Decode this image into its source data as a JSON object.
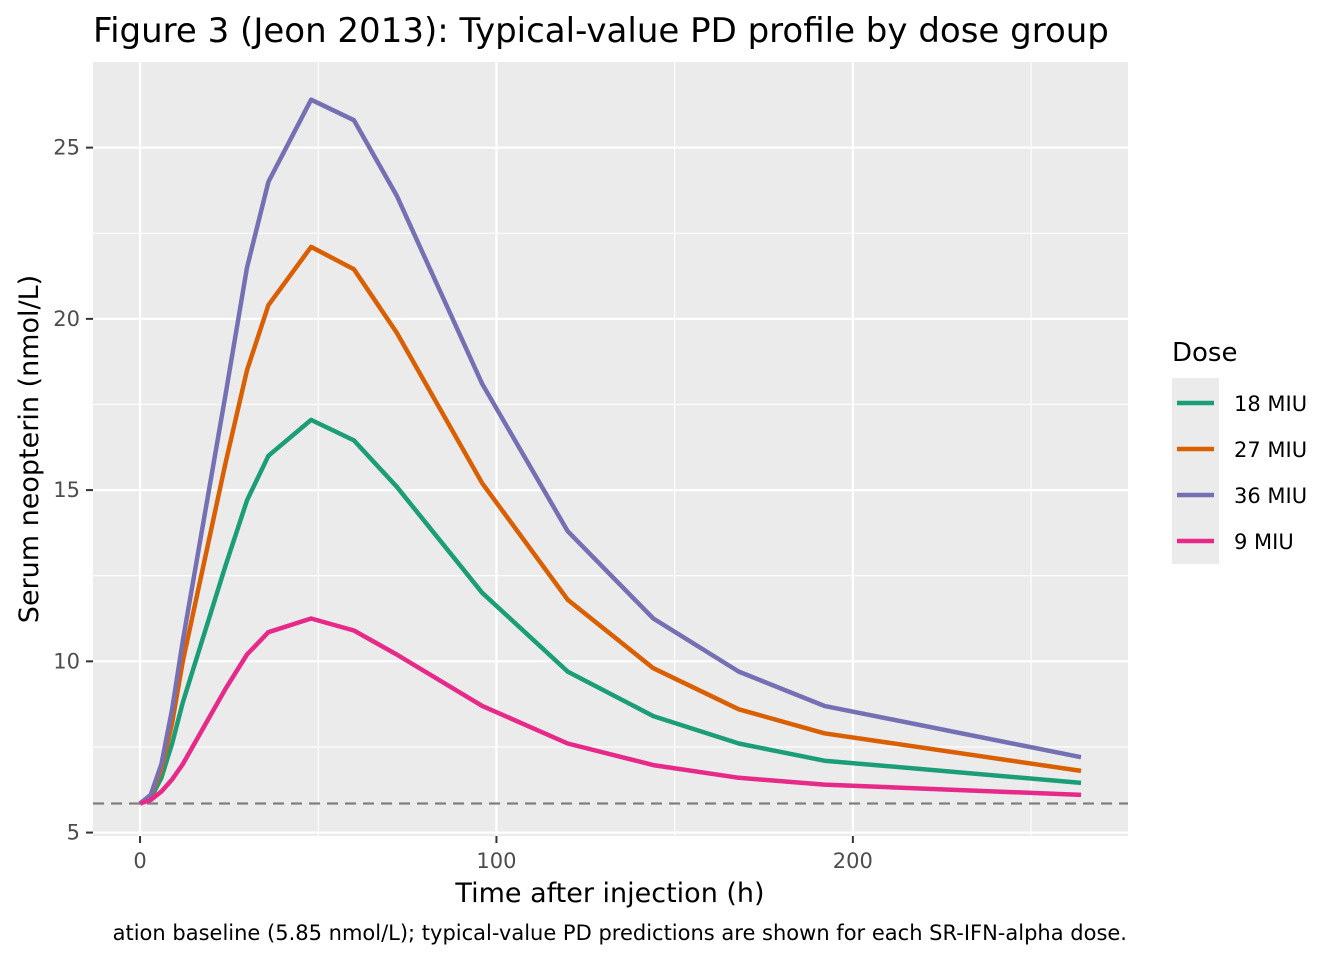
{
  "chart_data": {
    "type": "line",
    "title": "Figure 3 (Jeon 2013): Typical-value PD profile by dose group",
    "xlabel": "Time after injection (h)",
    "ylabel": "Serum neopterin (nmol/L)",
    "caption": "ation baseline (5.85 nmol/L); typical-value PD predictions are shown for each SR-IFN-alpha dose.",
    "xlim": [
      -13.2,
      277.2
    ],
    "ylim": [
      4.9,
      27.5
    ],
    "x_ticks": [
      0,
      100,
      200
    ],
    "y_ticks": [
      5,
      10,
      15,
      20,
      25
    ],
    "grid": true,
    "baseline": {
      "value": 5.85,
      "style": "dashed",
      "color": "#7f7f7f"
    },
    "legend": {
      "title": "Dose",
      "position": "right"
    },
    "series": [
      {
        "name": "18 MIU",
        "color": "#1b9e77",
        "points": [
          [
            0,
            5.85
          ],
          [
            3,
            6.0
          ],
          [
            6,
            6.6
          ],
          [
            9,
            7.6
          ],
          [
            12,
            8.8
          ],
          [
            18,
            10.8
          ],
          [
            24,
            12.8
          ],
          [
            30,
            14.7
          ],
          [
            36,
            16.0
          ],
          [
            48,
            17.05
          ],
          [
            60,
            16.45
          ],
          [
            72,
            15.1
          ],
          [
            96,
            12.0
          ],
          [
            120,
            9.7
          ],
          [
            144,
            8.4
          ],
          [
            168,
            7.6
          ],
          [
            192,
            7.1
          ],
          [
            264,
            6.45
          ]
        ]
      },
      {
        "name": "27 MIU",
        "color": "#d95f02",
        "points": [
          [
            0,
            5.85
          ],
          [
            3,
            6.05
          ],
          [
            6,
            6.85
          ],
          [
            9,
            8.2
          ],
          [
            12,
            10.0
          ],
          [
            18,
            12.9
          ],
          [
            24,
            15.8
          ],
          [
            30,
            18.5
          ],
          [
            36,
            20.4
          ],
          [
            48,
            22.1
          ],
          [
            60,
            21.45
          ],
          [
            72,
            19.6
          ],
          [
            96,
            15.2
          ],
          [
            120,
            11.8
          ],
          [
            144,
            9.8
          ],
          [
            168,
            8.6
          ],
          [
            192,
            7.9
          ],
          [
            264,
            6.8
          ]
        ]
      },
      {
        "name": "36 MIU",
        "color": "#7570b3",
        "points": [
          [
            0,
            5.85
          ],
          [
            3,
            6.1
          ],
          [
            6,
            7.0
          ],
          [
            9,
            8.6
          ],
          [
            12,
            10.6
          ],
          [
            18,
            14.2
          ],
          [
            24,
            17.8
          ],
          [
            30,
            21.5
          ],
          [
            36,
            24.0
          ],
          [
            48,
            26.4
          ],
          [
            60,
            25.8
          ],
          [
            72,
            23.6
          ],
          [
            96,
            18.1
          ],
          [
            120,
            13.8
          ],
          [
            144,
            11.25
          ],
          [
            168,
            9.7
          ],
          [
            192,
            8.7
          ],
          [
            264,
            7.2
          ]
        ]
      },
      {
        "name": "9 MIU",
        "color": "#e7298a",
        "points": [
          [
            0,
            5.85
          ],
          [
            3,
            5.95
          ],
          [
            6,
            6.2
          ],
          [
            9,
            6.55
          ],
          [
            12,
            7.0
          ],
          [
            18,
            8.1
          ],
          [
            24,
            9.2
          ],
          [
            30,
            10.2
          ],
          [
            36,
            10.85
          ],
          [
            48,
            11.25
          ],
          [
            60,
            10.9
          ],
          [
            72,
            10.2
          ],
          [
            96,
            8.7
          ],
          [
            120,
            7.6
          ],
          [
            144,
            6.97
          ],
          [
            168,
            6.6
          ],
          [
            192,
            6.4
          ],
          [
            264,
            6.1
          ]
        ]
      }
    ]
  }
}
